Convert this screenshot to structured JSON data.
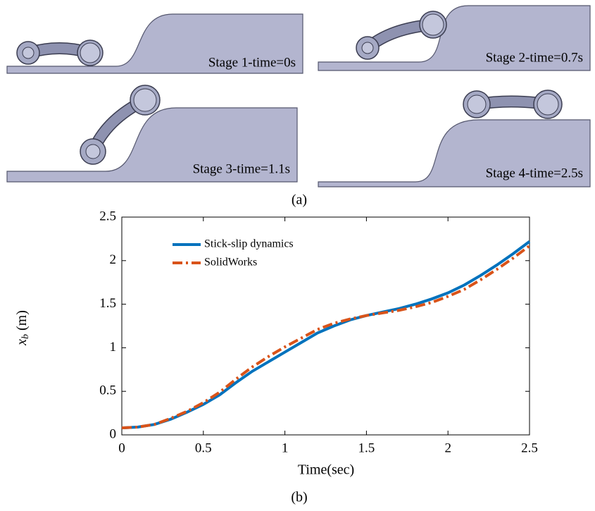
{
  "stages": [
    {
      "label": "Stage 1-time=0s"
    },
    {
      "label": "Stage 2-time=0.7s"
    },
    {
      "label": "Stage 3-time=1.1s"
    },
    {
      "label": "Stage 4-time=2.5s"
    }
  ],
  "caption_a": "(a)",
  "caption_b": "(b)",
  "chart_data": {
    "type": "line",
    "xlabel": "Time(sec)",
    "ylabel": {
      "symbol": "x",
      "subscript": "b",
      "unit": "(m)"
    },
    "x": [
      0,
      0.1,
      0.2,
      0.3,
      0.4,
      0.5,
      0.6,
      0.7,
      0.8,
      0.9,
      1.0,
      1.1,
      1.2,
      1.3,
      1.4,
      1.5,
      1.6,
      1.7,
      1.8,
      1.9,
      2.0,
      2.1,
      2.2,
      2.3,
      2.4,
      2.5
    ],
    "series": [
      {
        "name": "Stick-slip dynamics",
        "color": "#0072bd",
        "dash": "solid",
        "values": [
          0.08,
          0.09,
          0.12,
          0.18,
          0.26,
          0.35,
          0.46,
          0.6,
          0.73,
          0.84,
          0.95,
          1.06,
          1.17,
          1.25,
          1.32,
          1.37,
          1.41,
          1.45,
          1.5,
          1.56,
          1.63,
          1.72,
          1.83,
          1.95,
          2.08,
          2.22
        ]
      },
      {
        "name": "SolidWorks",
        "color": "#d95319",
        "dash": "dashdot",
        "values": [
          0.08,
          0.09,
          0.12,
          0.19,
          0.27,
          0.37,
          0.49,
          0.64,
          0.78,
          0.9,
          1.01,
          1.11,
          1.21,
          1.28,
          1.33,
          1.37,
          1.4,
          1.43,
          1.47,
          1.52,
          1.59,
          1.67,
          1.78,
          1.9,
          2.03,
          2.17
        ]
      }
    ],
    "xlim": [
      0,
      2.5
    ],
    "ylim": [
      0,
      2.5
    ],
    "xticks": [
      0,
      0.5,
      1,
      1.5,
      2,
      2.5
    ],
    "yticks": [
      0,
      0.5,
      1,
      1.5,
      2,
      2.5
    ],
    "grid": false,
    "legend": "upper-left"
  }
}
